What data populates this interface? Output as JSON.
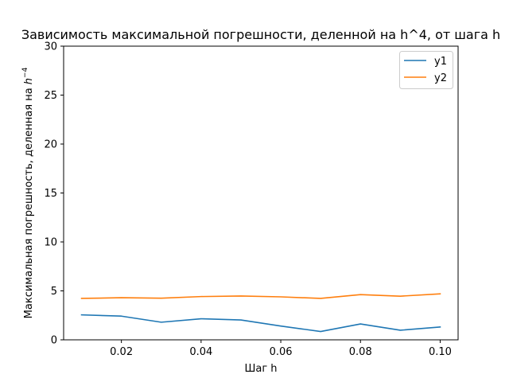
{
  "chart_data": {
    "type": "line",
    "title": "Зависимость максимальной погрешности, деленной на h^4, от шага h",
    "xlabel": "Шаг h",
    "ylabel_main": "Максимальная погрешность, деленная на ",
    "ylabel_base": "h",
    "ylabel_exp": "−4",
    "xlim": [
      0.0055,
      0.1045
    ],
    "ylim": [
      0,
      30
    ],
    "x_ticks": [
      0.02,
      0.04,
      0.06,
      0.08,
      0.1
    ],
    "x_tick_labels": [
      "0.02",
      "0.04",
      "0.06",
      "0.08",
      "0.10"
    ],
    "y_ticks": [
      0,
      5,
      10,
      15,
      20,
      25,
      30
    ],
    "y_tick_labels": [
      "0",
      "5",
      "10",
      "15",
      "20",
      "25",
      "30"
    ],
    "grid": false,
    "legend_position": "top-right",
    "x": [
      0.01,
      0.02,
      0.03,
      0.04,
      0.05,
      0.06,
      0.07,
      0.08,
      0.09,
      0.1
    ],
    "series": [
      {
        "name": "y1",
        "color": "#1f77b4",
        "values": [
          2.55,
          2.42,
          1.8,
          2.15,
          2.03,
          1.41,
          0.85,
          1.62,
          0.98,
          1.31
        ]
      },
      {
        "name": "y2",
        "color": "#ff7f0e",
        "values": [
          4.23,
          4.3,
          4.25,
          4.42,
          4.48,
          4.39,
          4.23,
          4.62,
          4.46,
          4.7
        ]
      }
    ]
  }
}
